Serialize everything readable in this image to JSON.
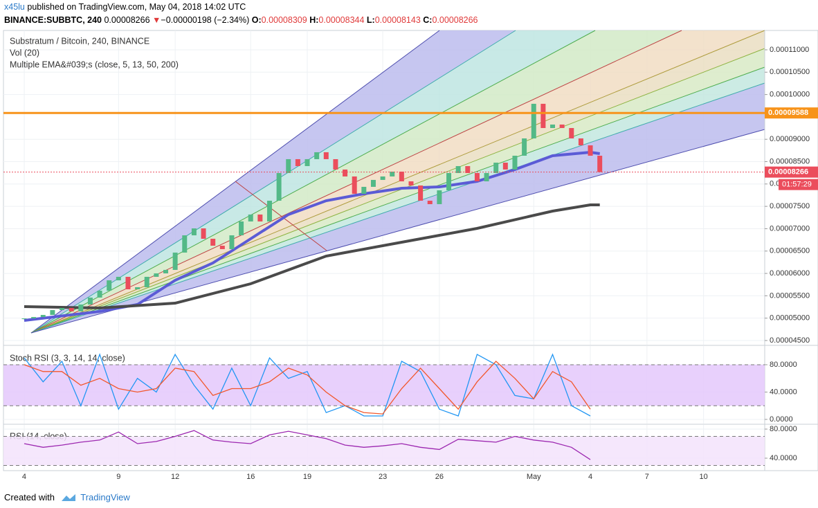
{
  "header": {
    "user": "x45lu",
    "published": "published on TradingView.com, May 04, 2018 14:02 UTC",
    "symbol": "BINANCE:SUBBTC, 240",
    "price": "0.00008266",
    "arrow": "▼",
    "change": "−0.00000198 (−2.34%)",
    "ohlc": [
      {
        "label": "O:",
        "value": "0.00008309"
      },
      {
        "label": "H:",
        "value": "0.00008344"
      },
      {
        "label": "L:",
        "value": "0.00008143"
      },
      {
        "label": "C:",
        "value": "0.00008266"
      }
    ]
  },
  "chart_data": [
    {
      "type": "candlestick",
      "title": "Substratum / Bitcoin, 240, BINANCE",
      "annotations": [
        "Vol (20)",
        "Multiple EMA&#039;s (close, 5, 13, 50, 200)"
      ],
      "up_color": "#53b987",
      "down_color": "#eb4d5c",
      "x": [
        0,
        0.5,
        1,
        1.5,
        2,
        2.5,
        3,
        3.5,
        4,
        4.5,
        5,
        5.5,
        6,
        6.5,
        7,
        7.5,
        8,
        8.5,
        9,
        9.5,
        10,
        10.5,
        11,
        11.5,
        12,
        12.5,
        13,
        13.5,
        14,
        14.5,
        15,
        15.5,
        16,
        16.5,
        17,
        17.5,
        18,
        18.5,
        19,
        19.5,
        20,
        20.5,
        21,
        21.5,
        22,
        22.5,
        23,
        23.5,
        24,
        24.5,
        25,
        25.5,
        26,
        26.5,
        27,
        27.5,
        28,
        28.5,
        29,
        29.5,
        30,
        30.5
      ],
      "values": [
        4.994e-05,
        5.025e-05,
        5.072e-05,
        5.18e-05,
        5.227e-05,
        5.15e-05,
        5.305e-05,
        5.46e-05,
        5.614e-05,
        5.846e-05,
        5.924e-05,
        5.645e-05,
        5.692e-05,
        5.924e-05,
        6.001e-05,
        6.079e-05,
        6.466e-05,
        6.852e-05,
        7.007e-05,
        6.775e-05,
        6.62e-05,
        6.543e-05,
        6.852e-05,
        7.162e-05,
        7.317e-05,
        7.162e-05,
        7.626e-05,
        8.245e-05,
        8.555e-05,
        8.4e-05,
        8.555e-05,
        8.71e-05,
        8.555e-05,
        8.323e-05,
        8.168e-05,
        7.781e-05,
        7.936e-05,
        8.091e-05,
        8.168e-05,
        8.276e-05,
        8.059e-05,
        7.967e-05,
        7.626e-05,
        7.549e-05,
        7.858e-05,
        8.245e-05,
        8.4e-05,
        8.245e-05,
        8.059e-05,
        8.245e-05,
        8.477e-05,
        8.323e-05,
        8.632e-05,
        9.019e-05,
        9.793e-05,
        9.251e-05,
        9.329e-05,
        9.251e-05,
        9.019e-05,
        8.864e-05,
        8.632e-05,
        8.266e-05
      ],
      "lines": [
        {
          "color": "#5b5bd6",
          "x": [
            0,
            4,
            6,
            8,
            10,
            12,
            14,
            16,
            18,
            20,
            22,
            24,
            26,
            28,
            30,
            30.5
          ],
          "values": [
            4.948e-05,
            5.15e-05,
            5.305e-05,
            5.846e-05,
            6.234e-05,
            6.775e-05,
            7.317e-05,
            7.626e-05,
            7.781e-05,
            7.905e-05,
            7.936e-05,
            8.059e-05,
            8.323e-05,
            8.632e-05,
            8.71e-05,
            8.679e-05
          ]
        },
        {
          "color": "#4a4a4a",
          "x": [
            0,
            4,
            8,
            12,
            16,
            20,
            24,
            28,
            30,
            30.5
          ],
          "values": [
            5.258e-05,
            5.227e-05,
            5.336e-05,
            5.769e-05,
            6.388e-05,
            6.697e-05,
            7.007e-05,
            7.394e-05,
            7.533e-05,
            7.533e-05
          ]
        }
      ],
      "hline": {
        "value": 9.588e-05,
        "label": "0.00009588",
        "color": "#f7931a"
      },
      "last_value": {
        "value": 8.266e-05,
        "label": "0.00008266",
        "color": "#eb4d5c"
      },
      "countdown": "01:57:29",
      "xlim": [
        -1.1,
        39.24
      ],
      "xticks": [
        {
          "value": 0,
          "label": "4"
        },
        {
          "value": 5,
          "label": "9"
        },
        {
          "value": 8,
          "label": "12"
        },
        {
          "value": 12,
          "label": "16"
        },
        {
          "value": 15,
          "label": "19"
        },
        {
          "value": 19,
          "label": "23"
        },
        {
          "value": 22,
          "label": "26"
        },
        {
          "value": 27,
          "label": "May"
        },
        {
          "value": 30,
          "label": "4"
        },
        {
          "value": 33,
          "label": "7"
        },
        {
          "value": 36,
          "label": "10"
        }
      ],
      "ylim": [
        4.407e-05,
        0.00011433
      ],
      "yticks": [
        {
          "value": 0.00011,
          "label": "0.00011000"
        },
        {
          "value": 0.000105,
          "label": "0.00010500"
        },
        {
          "value": 0.0001,
          "label": "0.00010000"
        },
        {
          "value": 9e-05,
          "label": "0.00009000"
        },
        {
          "value": 8.5e-05,
          "label": "0.00008500"
        },
        {
          "value": 8e-05,
          "label": "0.00008000"
        },
        {
          "value": 7.5e-05,
          "label": "0.00007500"
        },
        {
          "value": 7e-05,
          "label": "0.00007000"
        },
        {
          "value": 6.5e-05,
          "label": "0.00006500"
        },
        {
          "value": 6e-05,
          "label": "0.00006000"
        },
        {
          "value": 5.5e-05,
          "label": "0.00005500"
        },
        {
          "value": 5e-05,
          "label": "0.00005000"
        },
        {
          "value": 4.5e-05,
          "label": "0.00004500"
        }
      ]
    },
    {
      "type": "line",
      "title": "Stoch RSI (3, 3, 14, 14, close)",
      "band": [
        20,
        80
      ],
      "x": [
        0,
        1,
        2,
        3,
        4,
        5,
        6,
        7,
        8,
        9,
        10,
        11,
        12,
        13,
        14,
        15,
        16,
        17,
        18,
        19,
        20,
        21,
        22,
        23,
        24,
        25,
        26,
        27,
        28,
        29,
        30
      ],
      "lines": [
        {
          "color": "#2196f3",
          "values": [
            90,
            55,
            85,
            20,
            95,
            15,
            60,
            40,
            95,
            50,
            15,
            75,
            20,
            90,
            60,
            70,
            10,
            20,
            5,
            5,
            85,
            70,
            15,
            5,
            95,
            80,
            35,
            30,
            95,
            20,
            5
          ]
        },
        {
          "color": "#f2572b",
          "values": [
            80,
            70,
            70,
            50,
            60,
            45,
            40,
            45,
            75,
            70,
            35,
            45,
            45,
            55,
            75,
            65,
            40,
            20,
            10,
            8,
            45,
            75,
            45,
            15,
            55,
            85,
            60,
            30,
            70,
            55,
            15
          ]
        }
      ],
      "ylim": [
        -6.1,
        107.3
      ],
      "yticks": [
        {
          "value": 80,
          "label": "80.0000"
        },
        {
          "value": 40,
          "label": "40.0000"
        },
        {
          "value": 0,
          "label": "0.0000"
        }
      ]
    },
    {
      "type": "line",
      "title": "RSI (14, close)",
      "band": [
        30,
        70
      ],
      "x": [
        0,
        1,
        2,
        3,
        4,
        5,
        6,
        7,
        8,
        9,
        10,
        11,
        12,
        13,
        14,
        15,
        16,
        17,
        18,
        19,
        20,
        21,
        22,
        23,
        24,
        25,
        26,
        27,
        28,
        29,
        30
      ],
      "lines": [
        {
          "color": "#9c27b0",
          "values": [
            60,
            55,
            58,
            62,
            65,
            76,
            60,
            63,
            70,
            78,
            65,
            62,
            60,
            72,
            77,
            72,
            67,
            58,
            55,
            57,
            60,
            55,
            52,
            66,
            64,
            62,
            70,
            65,
            62,
            55,
            38
          ]
        }
      ],
      "ylim": [
        24.8,
        85.7
      ],
      "yticks": [
        {
          "value": 80,
          "label": "80.0000"
        },
        {
          "value": 40,
          "label": "40.0000"
        }
      ]
    }
  ],
  "footer": {
    "created": "Created with",
    "brand": "TradingView"
  }
}
